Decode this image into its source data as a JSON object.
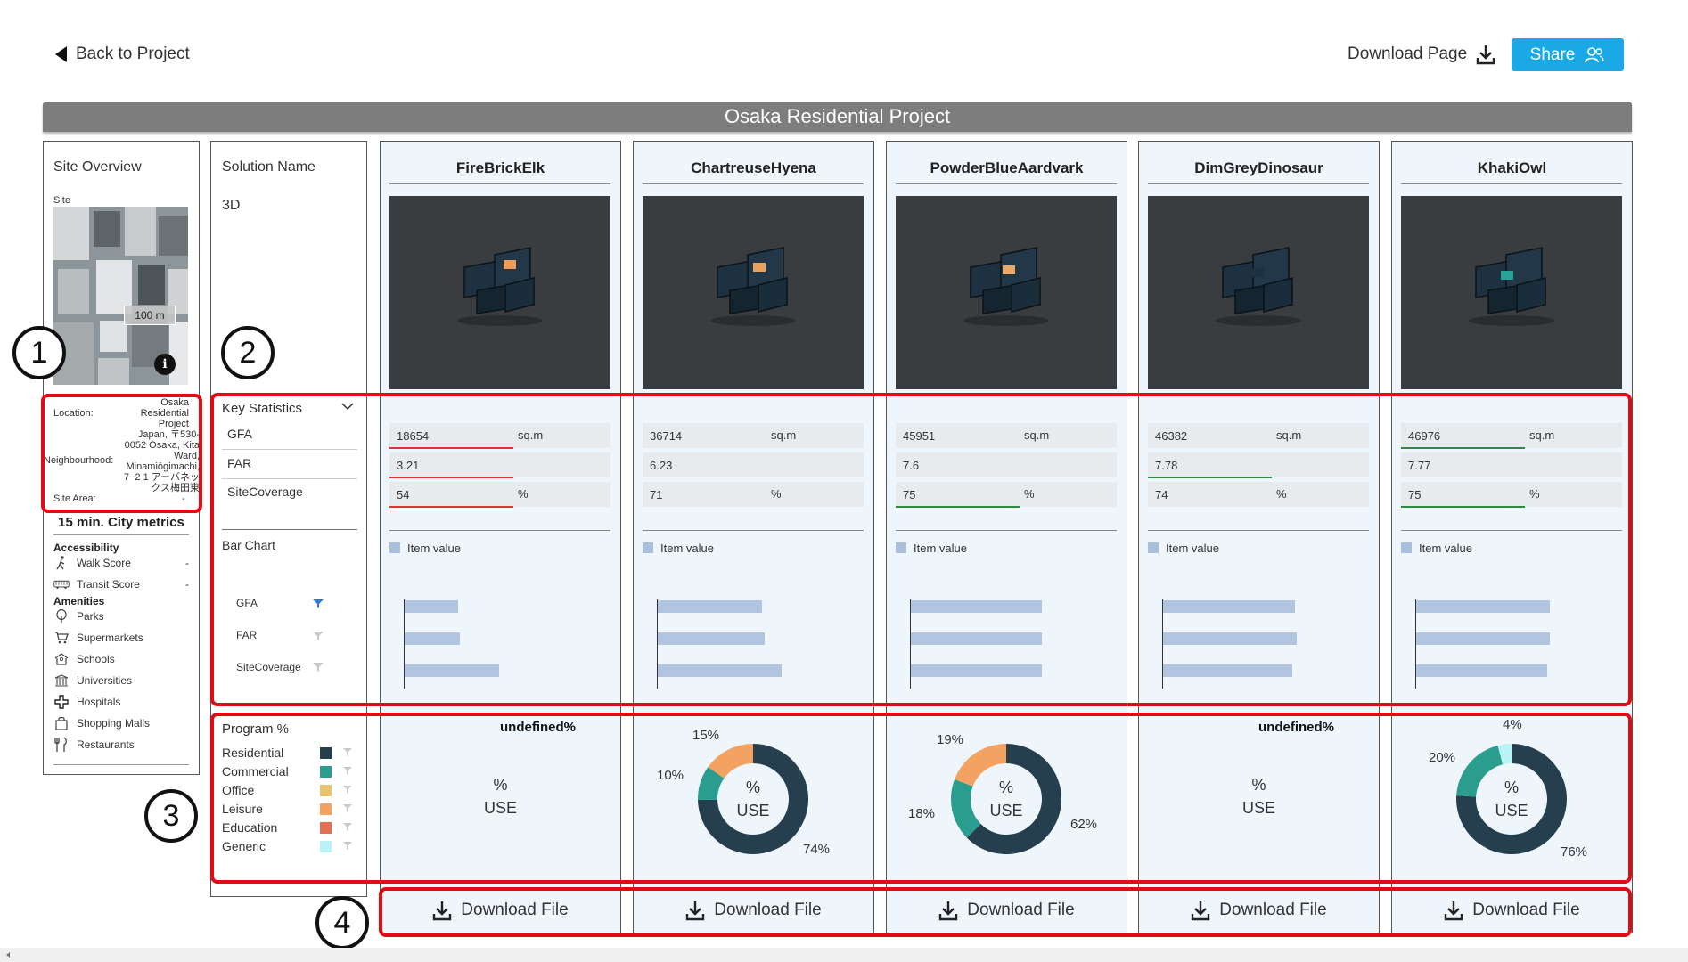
{
  "header": {
    "back_label": "Back to Project",
    "download_page_label": "Download Page",
    "share_label": "Share"
  },
  "project_title": "Osaka Residential Project",
  "site_overview": {
    "title": "Site Overview",
    "site_label": "Site",
    "scale_label": "100 m",
    "location_label": "Location:",
    "location_value": "Osaka Residential Project",
    "neighbourhood_label": "Neighbourhood:",
    "neighbourhood_value": "Japan, 〒530-0052 Osaka, Kita Ward, Minamiōgimachi, 7−2 1 アーバネックス梅田東",
    "site_area_label": "Site Area:",
    "site_area_value": "-"
  },
  "city_metrics": {
    "title": "15 min. City metrics",
    "accessibility_label": "Accessibility",
    "accessibility": [
      {
        "label": "Walk Score",
        "value": "-",
        "icon": "walk-icon"
      },
      {
        "label": "Transit Score",
        "value": "-",
        "icon": "bus-icon"
      }
    ],
    "amenities_label": "Amenities",
    "amenities": [
      {
        "label": "Parks",
        "icon": "tree-icon"
      },
      {
        "label": "Supermarkets",
        "icon": "cart-icon"
      },
      {
        "label": "Schools",
        "icon": "school-icon"
      },
      {
        "label": "Universities",
        "icon": "university-icon"
      },
      {
        "label": "Hospitals",
        "icon": "hospital-icon"
      },
      {
        "label": "Shopping Malls",
        "icon": "shopping-bag-icon"
      },
      {
        "label": "Restaurants",
        "icon": "restaurant-icon"
      }
    ]
  },
  "labels": {
    "solution_name": "Solution Name",
    "three_d": "3D",
    "key_statistics": "Key Statistics",
    "stats": [
      "GFA",
      "FAR",
      "SiteCoverage"
    ],
    "bar_chart": "Bar Chart",
    "bar_chart_items": [
      "GFA",
      "FAR",
      "SiteCoverage"
    ],
    "program_title": "Program %",
    "programs": [
      {
        "label": "Residential",
        "color": "#263f4e"
      },
      {
        "label": "Commercial",
        "color": "#2a9d8f"
      },
      {
        "label": "Office",
        "color": "#e9c46a"
      },
      {
        "label": "Leisure",
        "color": "#f4a261"
      },
      {
        "label": "Education",
        "color": "#e76f51"
      },
      {
        "label": "Generic",
        "color": "#b9f3f5"
      }
    ]
  },
  "units": {
    "gfa": "sq.m",
    "coverage": "%"
  },
  "legend_label": "Item value",
  "use_line1": "%",
  "use_line2": "USE",
  "undefined_label": "undefined%",
  "download_file_label": "Download File",
  "annotations": [
    "1",
    "2",
    "3",
    "4"
  ],
  "solutions": [
    {
      "name": "FireBrickElk",
      "gfa": "18654",
      "far": "3.21",
      "coverage": "54",
      "bars": {
        "gfa": 18654,
        "far": 3.21,
        "coverage": 54
      }
    },
    {
      "name": "ChartreuseHyena",
      "gfa": "36714",
      "far": "6.23",
      "coverage": "71",
      "bars": {
        "gfa": 36714,
        "far": 6.23,
        "coverage": 71
      },
      "program_labels": [
        "15%",
        "10%",
        "74%"
      ]
    },
    {
      "name": "PowderBlueAardvark",
      "gfa": "45951",
      "far": "7.6",
      "coverage": "75",
      "bars": {
        "gfa": 45951,
        "far": 7.6,
        "coverage": 75
      },
      "program_labels": [
        "19%",
        "18%",
        "62%"
      ]
    },
    {
      "name": "DimGreyDinosaur",
      "gfa": "46382",
      "far": "7.78",
      "coverage": "74",
      "bars": {
        "gfa": 46382,
        "far": 7.78,
        "coverage": 74
      }
    },
    {
      "name": "KhakiOwl",
      "gfa": "46976",
      "far": "7.77",
      "coverage": "75",
      "bars": {
        "gfa": 46976,
        "far": 7.77,
        "coverage": 75
      },
      "program_labels": [
        "4%",
        "20%",
        "76%"
      ]
    }
  ],
  "program_charts": [
    null,
    [
      {
        "program": "Residential",
        "value": 74
      },
      {
        "program": "Commercial",
        "value": 10
      },
      {
        "program": "Leisure",
        "value": 15
      }
    ],
    [
      {
        "program": "Residential",
        "value": 62
      },
      {
        "program": "Commercial",
        "value": 18
      },
      {
        "program": "Leisure",
        "value": 19
      }
    ],
    null,
    [
      {
        "program": "Residential",
        "value": 76
      },
      {
        "program": "Commercial",
        "value": 20
      },
      {
        "program": "Generic",
        "value": 4
      }
    ]
  ]
}
